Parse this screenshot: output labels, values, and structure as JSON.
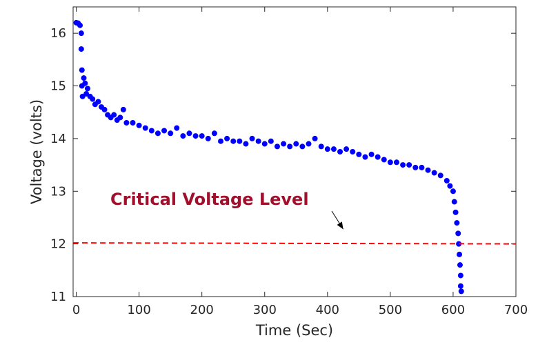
{
  "chart_data": {
    "type": "scatter",
    "xlabel": "Time (Sec)",
    "ylabel": "Voltage (volts)",
    "xlim": [
      -5,
      700
    ],
    "ylim": [
      11,
      16.5
    ],
    "xticks": [
      0,
      100,
      200,
      300,
      400,
      500,
      600,
      700
    ],
    "yticks": [
      11,
      12,
      13,
      14,
      15,
      16
    ],
    "grid": false,
    "series": [
      {
        "type": "scatter",
        "color": "#0000ff",
        "points": [
          [
            0,
            16.2
          ],
          [
            3,
            16.19
          ],
          [
            6,
            16.15
          ],
          [
            8,
            16.0
          ],
          [
            8,
            15.7
          ],
          [
            9,
            15.3
          ],
          [
            9,
            15.0
          ],
          [
            10,
            14.8
          ],
          [
            12,
            15.15
          ],
          [
            14,
            15.05
          ],
          [
            16,
            14.85
          ],
          [
            18,
            14.95
          ],
          [
            22,
            14.8
          ],
          [
            26,
            14.75
          ],
          [
            30,
            14.65
          ],
          [
            35,
            14.7
          ],
          [
            40,
            14.6
          ],
          [
            45,
            14.55
          ],
          [
            50,
            14.45
          ],
          [
            55,
            14.4
          ],
          [
            60,
            14.45
          ],
          [
            65,
            14.35
          ],
          [
            70,
            14.4
          ],
          [
            75,
            14.55
          ],
          [
            80,
            14.3
          ],
          [
            90,
            14.3
          ],
          [
            100,
            14.25
          ],
          [
            110,
            14.2
          ],
          [
            120,
            14.15
          ],
          [
            130,
            14.1
          ],
          [
            140,
            14.15
          ],
          [
            150,
            14.1
          ],
          [
            160,
            14.2
          ],
          [
            170,
            14.05
          ],
          [
            180,
            14.1
          ],
          [
            190,
            14.05
          ],
          [
            200,
            14.05
          ],
          [
            210,
            14.0
          ],
          [
            220,
            14.1
          ],
          [
            230,
            13.95
          ],
          [
            240,
            14.0
          ],
          [
            250,
            13.95
          ],
          [
            260,
            13.95
          ],
          [
            270,
            13.9
          ],
          [
            280,
            14.0
          ],
          [
            290,
            13.95
          ],
          [
            300,
            13.9
          ],
          [
            310,
            13.95
          ],
          [
            320,
            13.85
          ],
          [
            330,
            13.9
          ],
          [
            340,
            13.85
          ],
          [
            350,
            13.9
          ],
          [
            360,
            13.85
          ],
          [
            370,
            13.9
          ],
          [
            380,
            14.0
          ],
          [
            390,
            13.85
          ],
          [
            400,
            13.8
          ],
          [
            410,
            13.8
          ],
          [
            420,
            13.75
          ],
          [
            430,
            13.8
          ],
          [
            440,
            13.75
          ],
          [
            450,
            13.7
          ],
          [
            460,
            13.65
          ],
          [
            470,
            13.7
          ],
          [
            480,
            13.65
          ],
          [
            490,
            13.6
          ],
          [
            500,
            13.55
          ],
          [
            510,
            13.55
          ],
          [
            520,
            13.5
          ],
          [
            530,
            13.5
          ],
          [
            540,
            13.45
          ],
          [
            550,
            13.45
          ],
          [
            560,
            13.4
          ],
          [
            570,
            13.35
          ],
          [
            580,
            13.3
          ],
          [
            590,
            13.2
          ],
          [
            595,
            13.1
          ],
          [
            600,
            13.0
          ],
          [
            602,
            12.8
          ],
          [
            604,
            12.6
          ],
          [
            606,
            12.4
          ],
          [
            608,
            12.2
          ],
          [
            609,
            12.0
          ],
          [
            610,
            11.8
          ],
          [
            611,
            11.6
          ],
          [
            612,
            11.4
          ],
          [
            612,
            11.2
          ],
          [
            613,
            11.1
          ]
        ]
      }
    ],
    "threshold_line": {
      "y": 12.02,
      "color": "#ff0000",
      "style": "dashed"
    },
    "annotation": {
      "text": "Critical Voltage Level",
      "color": "#a0102d",
      "arrow_to": [
        425,
        12.28
      ]
    }
  }
}
